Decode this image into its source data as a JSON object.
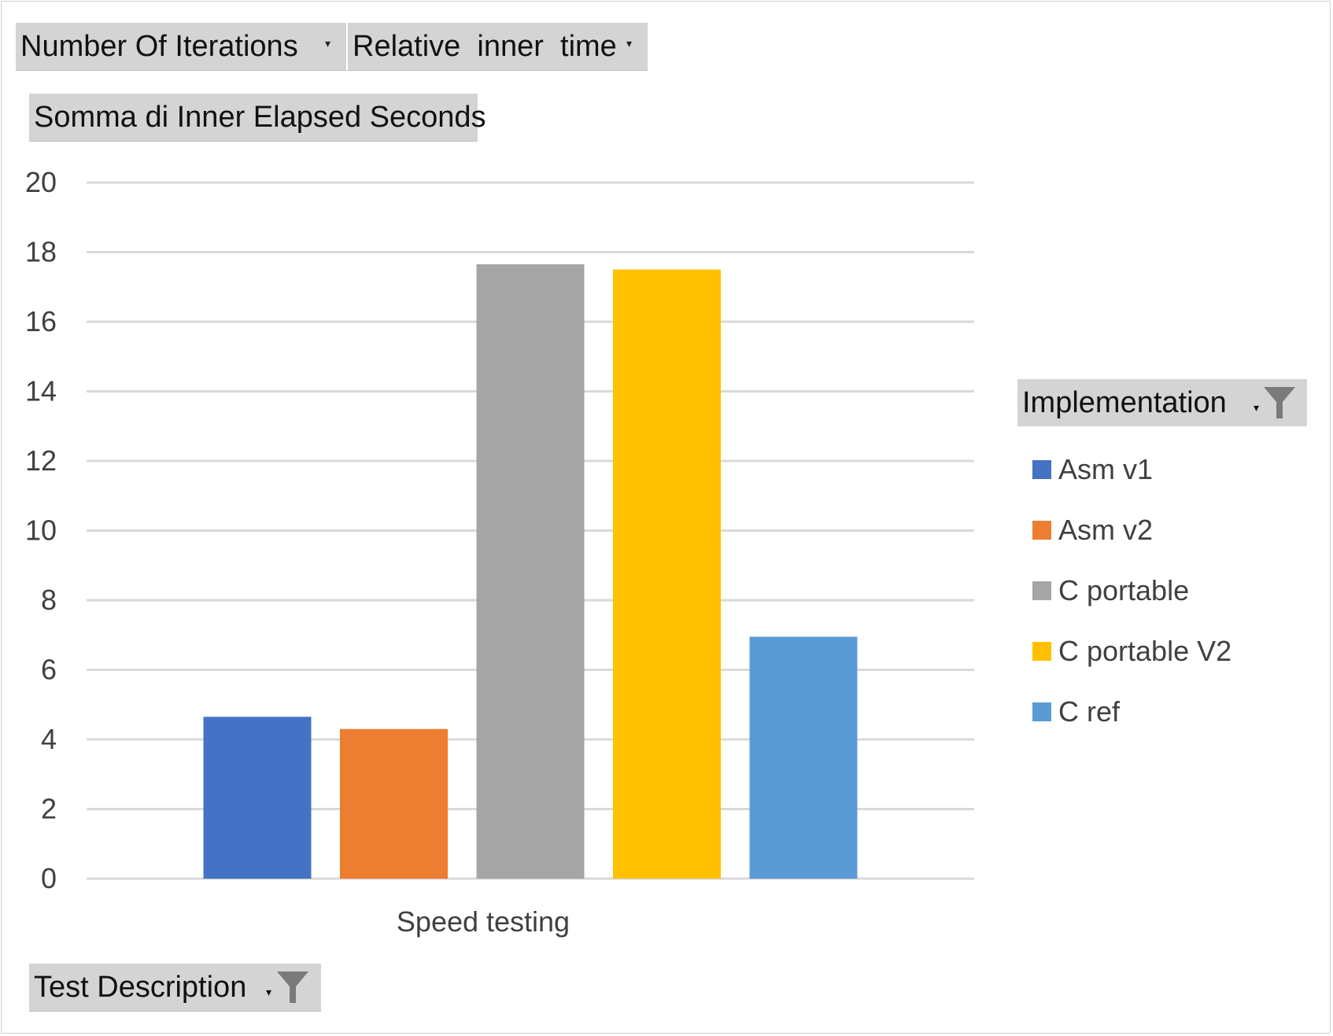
{
  "filters": {
    "page_fields": [
      {
        "label": "Number Of Iterations",
        "icon": "dropdown-arrow-icon"
      },
      {
        "label": "Relative  inner  time",
        "icon": "dropdown-arrow-icon"
      }
    ],
    "value_field": {
      "label": "Somma di Inner Elapsed Seconds"
    },
    "axis_field": {
      "label": "Test Description",
      "icon": "funnel-icon"
    },
    "legend_field": {
      "label": "Implementation",
      "icon": "funnel-icon"
    }
  },
  "chart_data": {
    "type": "bar",
    "categories": [
      "Speed testing"
    ],
    "series": [
      {
        "name": "Asm v1",
        "values": [
          4.65
        ],
        "color": "#4472C4"
      },
      {
        "name": "Asm v2",
        "values": [
          4.3
        ],
        "color": "#ED7D31"
      },
      {
        "name": "C portable",
        "values": [
          17.65
        ],
        "color": "#A5A5A5"
      },
      {
        "name": "C portable V2",
        "values": [
          17.5
        ],
        "color": "#FFC000"
      },
      {
        "name": "C ref",
        "values": [
          6.95
        ],
        "color": "#5B9BD5"
      }
    ],
    "ylim": [
      0,
      20
    ],
    "yticks": [
      "0",
      "2",
      "4",
      "6",
      "8",
      "10",
      "12",
      "14",
      "16",
      "18",
      "20"
    ],
    "grid": true,
    "legend_placement": "right"
  }
}
